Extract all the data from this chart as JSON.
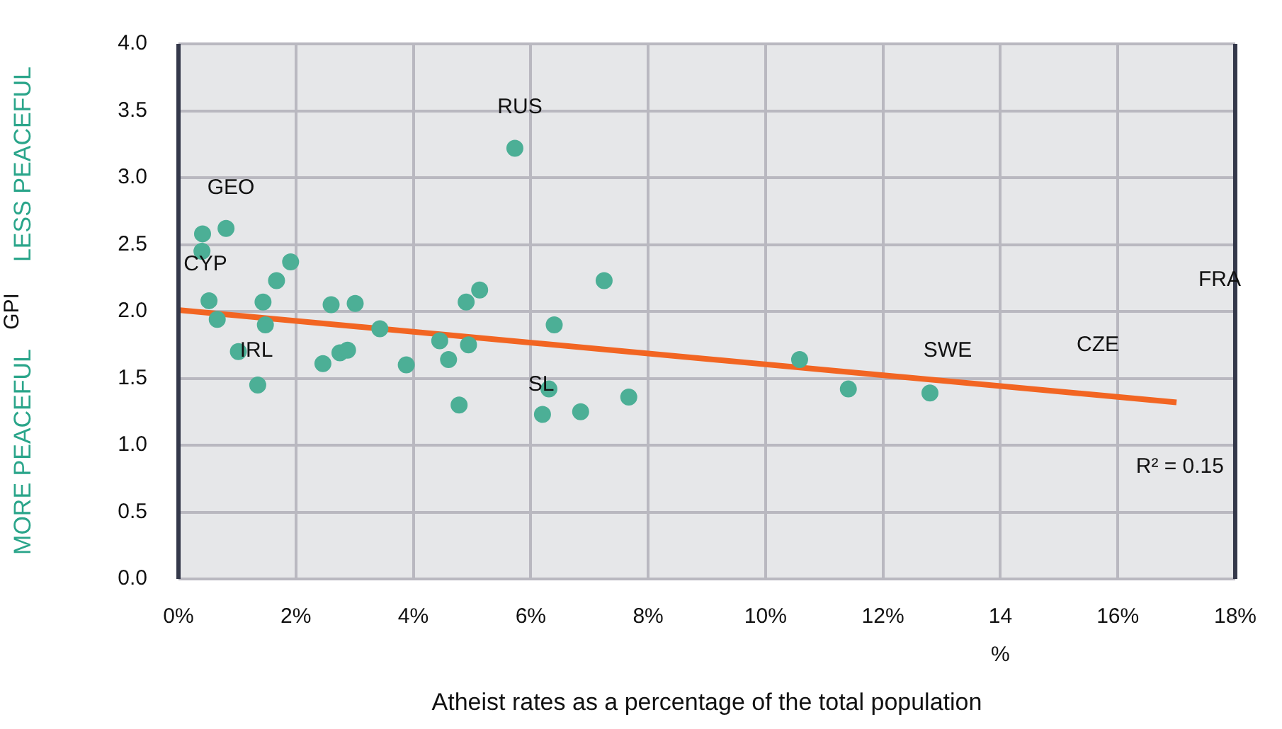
{
  "chart_data": {
    "type": "scatter",
    "ylabel": "GPI",
    "xlabel": "Atheist rates as a percentage of the total population",
    "xlim": [
      0,
      18
    ],
    "xticks": [
      {
        "value": 0,
        "label": "0%"
      },
      {
        "value": 2,
        "label": "2%"
      },
      {
        "value": 4,
        "label": "4%"
      },
      {
        "value": 6,
        "label": "6%"
      },
      {
        "value": 8,
        "label": "8%"
      },
      {
        "value": 10,
        "label": "10%"
      },
      {
        "value": 12,
        "label": "12%"
      },
      {
        "value": 14,
        "label": "14"
      },
      {
        "value": 16,
        "label": "16%"
      },
      {
        "value": 18,
        "label": "18%"
      }
    ],
    "ylim": [
      0,
      4
    ],
    "yticks": [
      {
        "value": 0,
        "label": "0.0"
      },
      {
        "value": 0.5,
        "label": "0.5"
      },
      {
        "value": 1,
        "label": "1.0"
      },
      {
        "value": 1.5,
        "label": "1.5"
      },
      {
        "value": 2,
        "label": "2.0"
      },
      {
        "value": 2.5,
        "label": "2.5"
      },
      {
        "value": 3,
        "label": "3.0"
      },
      {
        "value": 3.5,
        "label": "3.5"
      },
      {
        "value": 4,
        "label": "4.0"
      }
    ],
    "grid": true,
    "marker": "circle",
    "series": [
      {
        "color": "#4caf96",
        "x": [
          0.41,
          0.81,
          0.4,
          1.91,
          1.67,
          0.52,
          1.44,
          0.66,
          1.48,
          2.6,
          3.01,
          3.43,
          1.02,
          1.35,
          2.46,
          2.75,
          2.88,
          3.88,
          4.45,
          4.6,
          4.94,
          4.9,
          5.13,
          4.78,
          5.73,
          7.25,
          6.4,
          6.31,
          6.2,
          6.85,
          7.67,
          10.58,
          11.41,
          12.8
        ],
        "values": [
          2.58,
          2.62,
          2.45,
          2.37,
          2.23,
          2.08,
          2.07,
          1.94,
          1.9,
          2.05,
          2.06,
          1.87,
          1.7,
          1.45,
          1.61,
          1.69,
          1.71,
          1.6,
          1.78,
          1.64,
          1.75,
          2.07,
          2.16,
          1.3,
          3.22,
          2.23,
          1.9,
          1.42,
          1.23,
          1.25,
          1.36,
          1.64,
          1.42,
          1.39
        ]
      },
      {
        "type": "line",
        "color": "#f26522",
        "marker": "none",
        "x": [
          0,
          17
        ],
        "values": [
          2.01,
          1.32
        ]
      }
    ],
    "annotations": [
      "GEO",
      "CYP",
      "IRL",
      "RUS",
      "SL",
      "SWE",
      "CZE",
      "FRA",
      "R² = 0.15",
      "%",
      "LESS PEACEFUL",
      "MORE PEACEFUL"
    ]
  }
}
